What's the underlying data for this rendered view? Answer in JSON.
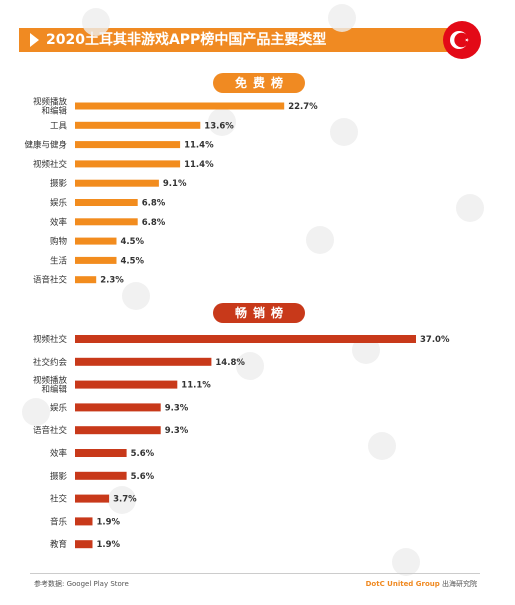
{
  "header": {
    "title": "2020土耳其非游戏APP榜中国产品主要类型",
    "flag_icon": "turkey-flag-icon",
    "accent_color": "#f08a22"
  },
  "sections": {
    "free": {
      "label": "免费榜",
      "bar_color": "#f28c1e"
    },
    "grossing": {
      "label": "畅销榜",
      "bar_color": "#c8391a"
    }
  },
  "chart_data": [
    {
      "type": "bar",
      "orientation": "horizontal",
      "title": "免费榜",
      "categories": [
        [
          "视频播放",
          "和编辑"
        ],
        [
          "工具"
        ],
        [
          "健康与健身"
        ],
        [
          "视频社交"
        ],
        [
          "摄影"
        ],
        [
          "娱乐"
        ],
        [
          "效率"
        ],
        [
          "购物"
        ],
        [
          "生活"
        ],
        [
          "语音社交"
        ]
      ],
      "values": [
        22.7,
        13.6,
        11.4,
        11.4,
        9.1,
        6.8,
        6.8,
        4.5,
        4.5,
        2.3
      ],
      "value_labels": [
        "22.7%",
        "13.6%",
        "11.4%",
        "11.4%",
        "9.1%",
        "6.8%",
        "6.8%",
        "4.5%",
        "4.5%",
        "2.3%"
      ],
      "xlim": [
        0,
        37
      ],
      "grid": false,
      "legend": "none"
    },
    {
      "type": "bar",
      "orientation": "horizontal",
      "title": "畅销榜",
      "categories": [
        [
          "视频社交"
        ],
        [
          "社交约会"
        ],
        [
          "视频播放",
          "和编辑"
        ],
        [
          "娱乐"
        ],
        [
          "语音社交"
        ],
        [
          "效率"
        ],
        [
          "摄影"
        ],
        [
          "社交"
        ],
        [
          "音乐"
        ],
        [
          "教育"
        ]
      ],
      "values": [
        37.0,
        14.8,
        11.1,
        9.3,
        9.3,
        5.6,
        5.6,
        3.7,
        1.9,
        1.9
      ],
      "value_labels": [
        "37.0%",
        "14.8%",
        "11.1%",
        "9.3%",
        "9.3%",
        "5.6%",
        "5.6%",
        "3.7%",
        "1.9%",
        "1.9%"
      ],
      "xlim": [
        0,
        37
      ],
      "grid": false,
      "legend": "none"
    }
  ],
  "footer": {
    "source": "参考数据: Googel Play Store",
    "brand_name": "DotC United Group",
    "brand_sub": "出海研究院"
  }
}
